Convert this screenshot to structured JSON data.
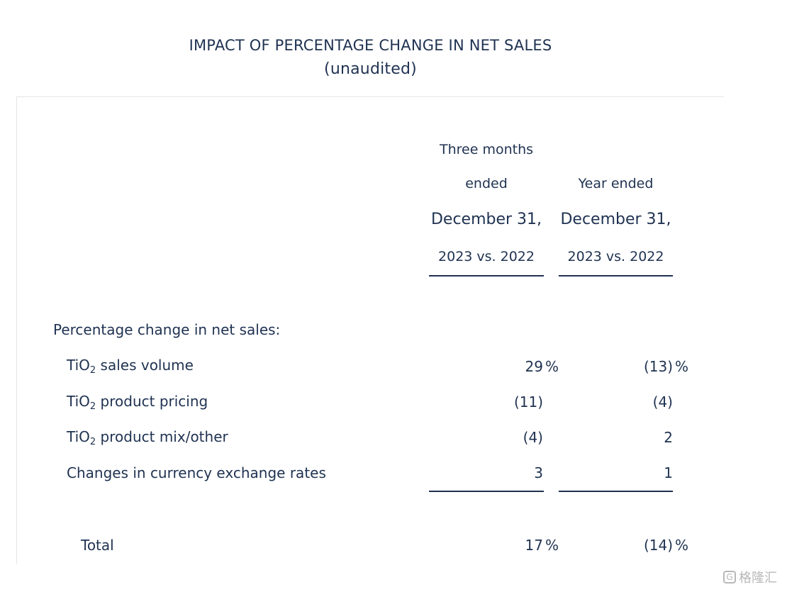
{
  "title": {
    "line1": "IMPACT OF PERCENTAGE CHANGE IN NET SALES",
    "line2": "(unaudited)"
  },
  "columns": [
    {
      "line1": "Three months",
      "line2": "ended",
      "line3": "December 31,",
      "line4": "2023 vs. 2022"
    },
    {
      "line1": "",
      "line2": "Year ended",
      "line3": "December 31,",
      "line4": "2023 vs. 2022"
    }
  ],
  "section_label": "Percentage change in net sales:",
  "rows": [
    {
      "pre": "TiO",
      "sub": "2",
      "post": " sales volume",
      "c1": "29",
      "c1_suffix": "%",
      "c2": "(13)",
      "c2_suffix": "%"
    },
    {
      "pre": "TiO",
      "sub": "2",
      "post": " product pricing",
      "c1": "(11)",
      "c1_suffix": "",
      "c2": "(4)",
      "c2_suffix": ""
    },
    {
      "pre": "TiO",
      "sub": "2",
      "post": " product mix/other",
      "c1": "(4)",
      "c1_suffix": "",
      "c2": "2",
      "c2_suffix": ""
    },
    {
      "pre": "Changes in currency exchange rates",
      "sub": "",
      "post": "",
      "c1": "3",
      "c1_suffix": "",
      "c2": "1",
      "c2_suffix": ""
    }
  ],
  "total": {
    "label": "Total",
    "c1": "17",
    "c1_suffix": "%",
    "c2": "(14)",
    "c2_suffix": "%"
  },
  "watermark": {
    "icon": "G",
    "text": "格隆汇"
  }
}
